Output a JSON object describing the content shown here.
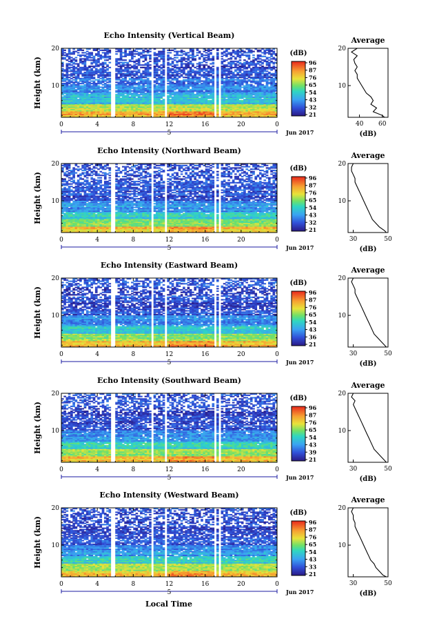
{
  "figure": {
    "x_axis_label": "Local Time",
    "day_label": "5",
    "date_label": "Jun 2017",
    "y_axis_label": "Height (km)",
    "colorbar_unit": "(dB)",
    "average_title": "Average",
    "average_xlabel": "(dB)"
  },
  "chart_data": [
    {
      "type": "heatmap",
      "title": "Echo Intensity (Vertical Beam)",
      "xlabel": "Local Time",
      "ylabel": "Height (km)",
      "x_ticks": [
        "0",
        "4",
        "8",
        "12",
        "16",
        "20",
        "0"
      ],
      "y_ticks": [
        "10",
        "20"
      ],
      "xlim": [
        0,
        24
      ],
      "ylim": [
        1.5,
        20
      ],
      "colorbar_ticks": [
        "96",
        "87",
        "76",
        "65",
        "54",
        "43",
        "32",
        "21"
      ],
      "colorbar_range": [
        21,
        96
      ],
      "data_gaps_hours": [
        [
          5.6,
          6.1
        ],
        [
          9.9,
          10.3
        ],
        [
          10.4,
          10.55
        ],
        [
          11.4,
          11.7
        ],
        [
          16.9,
          17.2
        ],
        [
          17.5,
          17.8
        ]
      ],
      "profile": {
        "title": "Average",
        "xlabel": "(dB)",
        "x_ticks": [
          "40",
          "60"
        ],
        "xlim": [
          30,
          65
        ],
        "height_km": [
          1.5,
          2,
          3,
          4,
          5,
          6,
          7,
          8,
          9,
          10,
          11,
          12,
          13,
          14,
          15,
          16,
          17,
          18,
          19,
          20
        ],
        "value_db": [
          62,
          60,
          52,
          55,
          50,
          52,
          50,
          46,
          44,
          42,
          40,
          38,
          38,
          36,
          38,
          36,
          35,
          38,
          33,
          38
        ]
      }
    },
    {
      "type": "heatmap",
      "title": "Echo Intensity (Northward Beam)",
      "xlabel": "Local Time",
      "ylabel": "Height (km)",
      "x_ticks": [
        "0",
        "4",
        "8",
        "12",
        "16",
        "20",
        "0"
      ],
      "y_ticks": [
        "10",
        "20"
      ],
      "xlim": [
        0,
        24
      ],
      "ylim": [
        1.5,
        20
      ],
      "colorbar_ticks": [
        "96",
        "87",
        "76",
        "65",
        "54",
        "43",
        "32",
        "21"
      ],
      "colorbar_range": [
        21,
        96
      ],
      "data_gaps_hours": [
        [
          5.6,
          6.1
        ],
        [
          9.9,
          10.3
        ],
        [
          10.4,
          10.55
        ],
        [
          11.4,
          11.7
        ],
        [
          16.9,
          17.2
        ],
        [
          17.5,
          17.8
        ]
      ],
      "profile": {
        "title": "Average",
        "xlabel": "(dB)",
        "x_ticks": [
          "30",
          "50"
        ],
        "xlim": [
          27,
          50
        ],
        "height_km": [
          1.5,
          2,
          3,
          4,
          5,
          6,
          7,
          8,
          9,
          10,
          11,
          12,
          13,
          14,
          15,
          16,
          17,
          18,
          19,
          20
        ],
        "value_db": [
          49,
          48,
          45,
          43,
          41,
          40,
          39,
          38,
          37,
          36,
          35,
          34,
          33,
          32,
          31,
          31,
          30,
          29,
          29,
          30
        ]
      }
    },
    {
      "type": "heatmap",
      "title": "Echo Intensity (Eastward Beam)",
      "xlabel": "Local Time",
      "ylabel": "Height (km)",
      "x_ticks": [
        "0",
        "4",
        "8",
        "12",
        "16",
        "20",
        "0"
      ],
      "y_ticks": [
        "10",
        "20"
      ],
      "xlim": [
        0,
        24
      ],
      "ylim": [
        1.5,
        20
      ],
      "colorbar_ticks": [
        "96",
        "87",
        "76",
        "65",
        "54",
        "43",
        "36",
        "21"
      ],
      "colorbar_range": [
        21,
        96
      ],
      "data_gaps_hours": [
        [
          5.6,
          6.1
        ],
        [
          9.9,
          10.3
        ],
        [
          10.4,
          10.55
        ],
        [
          11.4,
          11.7
        ],
        [
          16.9,
          17.2
        ],
        [
          17.5,
          17.8
        ]
      ],
      "profile": {
        "title": "Average",
        "xlabel": "(dB)",
        "x_ticks": [
          "30",
          "50"
        ],
        "xlim": [
          27,
          50
        ],
        "height_km": [
          1.5,
          2,
          3,
          4,
          5,
          6,
          7,
          8,
          9,
          10,
          11,
          12,
          13,
          14,
          15,
          16,
          17,
          18,
          19,
          20
        ],
        "value_db": [
          49,
          48,
          46,
          44,
          42,
          41,
          40,
          39,
          38,
          37,
          36,
          35,
          34,
          33,
          32,
          31,
          31,
          30,
          29,
          30
        ]
      }
    },
    {
      "type": "heatmap",
      "title": "Echo Intensity (Southward Beam)",
      "xlabel": "Local Time",
      "ylabel": "Height (km)",
      "x_ticks": [
        "0",
        "4",
        "8",
        "12",
        "16",
        "20",
        "0"
      ],
      "y_ticks": [
        "10",
        "20"
      ],
      "xlim": [
        0,
        24
      ],
      "ylim": [
        1.5,
        20
      ],
      "colorbar_ticks": [
        "96",
        "87",
        "76",
        "65",
        "54",
        "43",
        "39",
        "21"
      ],
      "colorbar_range": [
        21,
        96
      ],
      "data_gaps_hours": [
        [
          5.6,
          6.1
        ],
        [
          9.9,
          10.3
        ],
        [
          10.4,
          10.55
        ],
        [
          11.4,
          11.7
        ],
        [
          16.9,
          17.2
        ],
        [
          17.5,
          17.8
        ]
      ],
      "profile": {
        "title": "Average",
        "xlabel": "(dB)",
        "x_ticks": [
          "30",
          "50"
        ],
        "xlim": [
          27,
          50
        ],
        "height_km": [
          1.5,
          2,
          3,
          4,
          5,
          6,
          7,
          8,
          9,
          10,
          11,
          12,
          13,
          14,
          15,
          16,
          17,
          18,
          19,
          20
        ],
        "value_db": [
          49,
          48,
          46,
          44,
          42,
          41,
          40,
          39,
          38,
          37,
          36,
          35,
          34,
          33,
          32,
          31,
          30,
          31,
          29,
          30
        ]
      }
    },
    {
      "type": "heatmap",
      "title": "Echo Intensity (Westward Beam)",
      "xlabel": "Local Time",
      "ylabel": "Height (km)",
      "x_ticks": [
        "0",
        "4",
        "8",
        "12",
        "16",
        "20",
        "0"
      ],
      "y_ticks": [
        "10",
        "20"
      ],
      "xlim": [
        0,
        24
      ],
      "ylim": [
        1.5,
        20
      ],
      "colorbar_ticks": [
        "96",
        "87",
        "76",
        "65",
        "54",
        "43",
        "33",
        "21"
      ],
      "colorbar_range": [
        21,
        96
      ],
      "data_gaps_hours": [
        [
          5.6,
          6.1
        ],
        [
          9.9,
          10.3
        ],
        [
          10.4,
          10.55
        ],
        [
          11.4,
          11.7
        ],
        [
          16.9,
          17.2
        ],
        [
          17.5,
          17.8
        ]
      ],
      "profile": {
        "title": "Average",
        "xlabel": "(dB)",
        "x_ticks": [
          "30",
          "50"
        ],
        "xlim": [
          27,
          50
        ],
        "height_km": [
          1.5,
          2,
          3,
          4,
          5,
          6,
          7,
          8,
          9,
          10,
          11,
          12,
          13,
          14,
          15,
          16,
          17,
          18,
          19,
          20
        ],
        "value_db": [
          49,
          47,
          45,
          43,
          42,
          40,
          39,
          38,
          37,
          36,
          35,
          34,
          33,
          32,
          31,
          31,
          30,
          30,
          29,
          30
        ]
      }
    }
  ]
}
